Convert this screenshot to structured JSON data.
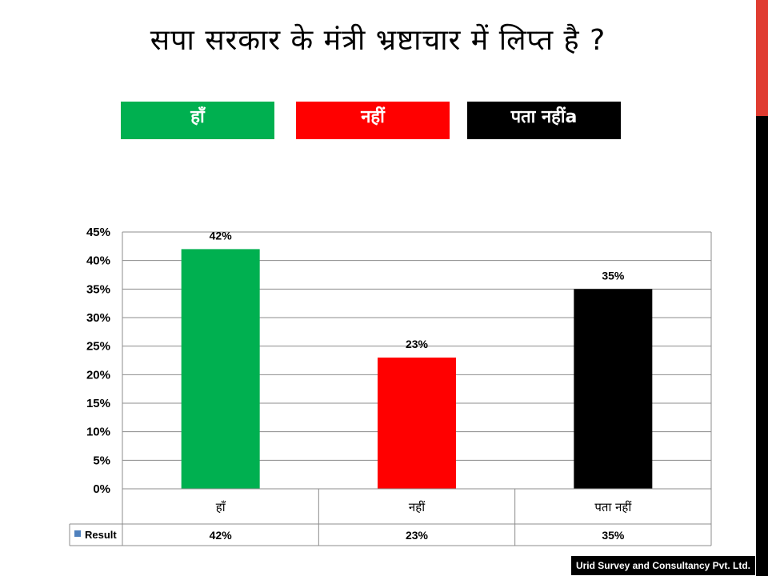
{
  "title": "सपा सरकार के मंत्री भ्रष्टाचार में लिप्त है ?",
  "legend": [
    {
      "label": "हाँ",
      "color": "#00b050"
    },
    {
      "label": "नहीं",
      "color": "#ff0000"
    },
    {
      "label": "पता नहींa",
      "color": "#000000"
    }
  ],
  "chart_data": {
    "type": "bar",
    "categories": [
      "हाँ",
      "नहीं",
      "पता नहीं"
    ],
    "series": [
      {
        "name": "Result",
        "values": [
          42,
          23,
          35
        ],
        "colors": [
          "#00b050",
          "#ff0000",
          "#000000"
        ]
      }
    ],
    "data_labels": [
      "42%",
      "23%",
      "35%"
    ],
    "yticks": [
      "0%",
      "5%",
      "10%",
      "15%",
      "20%",
      "25%",
      "30%",
      "35%",
      "40%",
      "45%"
    ],
    "ylim": [
      0,
      45
    ],
    "grid": true,
    "table": {
      "legend_label": "Result",
      "legend_color": "#4f81bd",
      "values": [
        "42%",
        "23%",
        "35%"
      ]
    }
  },
  "footer": "Urid Survey and Consultancy Pvt. Ltd."
}
